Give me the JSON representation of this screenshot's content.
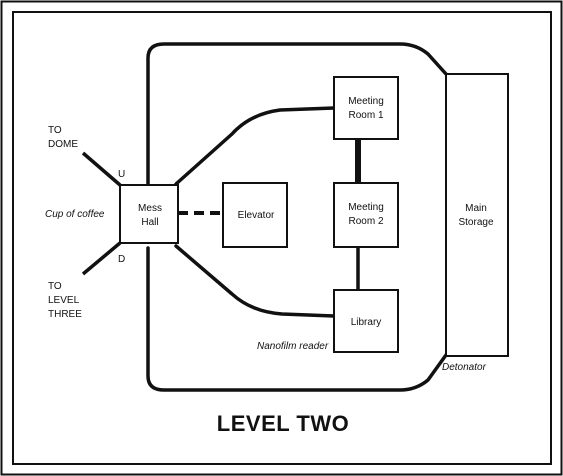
{
  "map": {
    "title": "LEVEL TWO",
    "rooms": {
      "mess_hall": [
        "Mess",
        "Hall"
      ],
      "elevator": [
        "Elevator"
      ],
      "meeting_room_1": [
        "Meeting",
        "Room 1"
      ],
      "meeting_room_2": [
        "Meeting",
        "Room 2"
      ],
      "library": [
        "Library"
      ],
      "main_storage": [
        "Main",
        "Storage"
      ]
    },
    "exits": {
      "up_marker": "U",
      "down_marker": "D",
      "to_dome": [
        "TO",
        "DOME"
      ],
      "to_level_three": [
        "TO",
        "LEVEL",
        "THREE"
      ]
    },
    "items": {
      "cup_of_coffee": "Cup of coffee",
      "nanofilm_reader": "Nanofilm reader",
      "detonator": "Detonator"
    },
    "colors": {
      "ink": "#111111",
      "paper": "#ffffff"
    }
  }
}
